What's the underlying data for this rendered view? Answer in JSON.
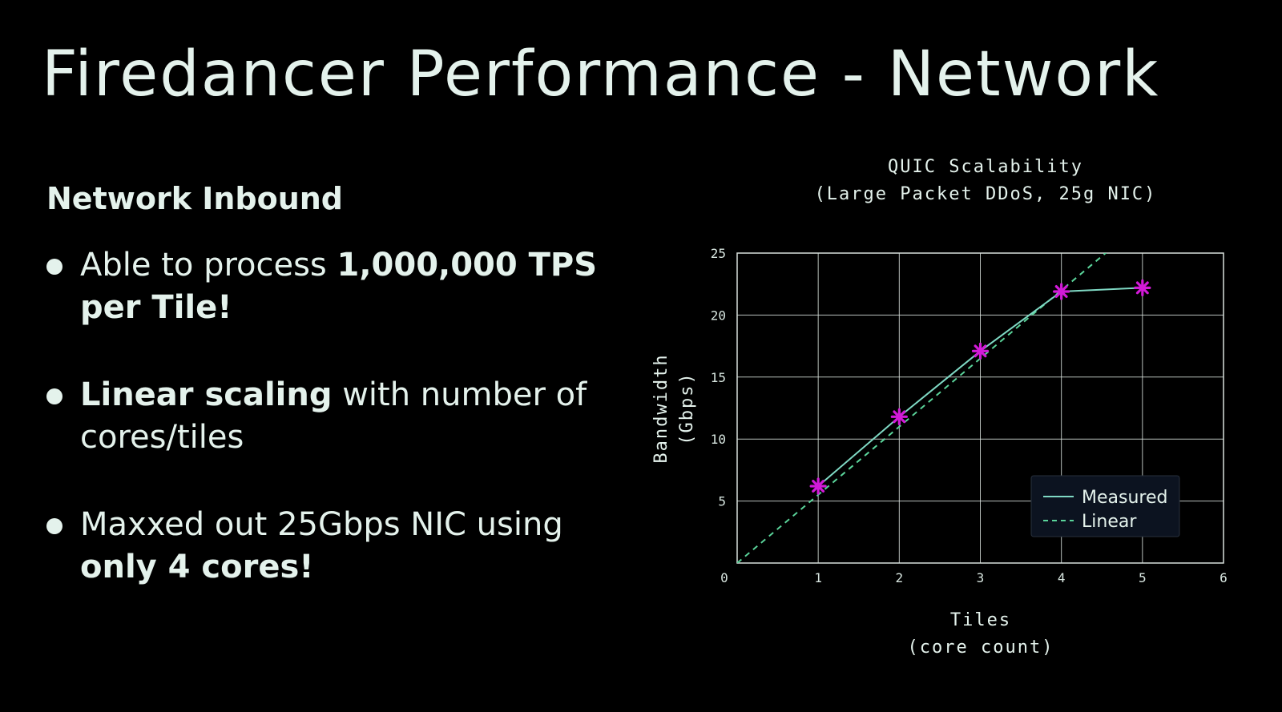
{
  "slide": {
    "title": "Firedancer Performance - Network",
    "section_heading": "Network Inbound",
    "bullets": [
      {
        "parts": [
          {
            "text": "Able to process ",
            "bold": false
          },
          {
            "text": "1,000,000 TPS per Tile!",
            "bold": true
          }
        ]
      },
      {
        "parts": [
          {
            "text": "Linear scaling",
            "bold": true
          },
          {
            "text": " with number of cores/tiles",
            "bold": false
          }
        ]
      },
      {
        "parts": [
          {
            "text": "Maxxed out 25Gbps NIC using ",
            "bold": false
          },
          {
            "text": "only 4 cores!",
            "bold": true
          }
        ]
      }
    ]
  },
  "colors": {
    "background": "#000000",
    "text": "#e4f2ec",
    "grid": "#d8e0dc",
    "measured_line": "#7fd9c4",
    "linear_line": "#5ad49a",
    "marker": "#d21ad8",
    "legend_bg": "#0c1320"
  },
  "chart_data": {
    "type": "line",
    "title": "QUIC Scalability",
    "subtitle": "(Large Packet DDoS, 25g NIC)",
    "xlabel": "Tiles",
    "xlabel_sub": "(core count)",
    "ylabel": "Bandwidth",
    "ylabel_sub": "(Gbps)",
    "xlim": [
      0,
      6
    ],
    "ylim": [
      0,
      25
    ],
    "xticks": [
      0,
      1,
      2,
      3,
      4,
      5,
      6
    ],
    "yticks": [
      5,
      10,
      15,
      20,
      25
    ],
    "grid": true,
    "legend_position": "bottom-right",
    "series": [
      {
        "name": "Measured",
        "style": "solid",
        "marker": "asterisk",
        "x": [
          1,
          2,
          3,
          4,
          5
        ],
        "y": [
          6.2,
          11.8,
          17.1,
          21.9,
          22.2
        ]
      },
      {
        "name": "Linear",
        "style": "dashed",
        "marker": "none",
        "x": [
          0,
          6
        ],
        "y": [
          0,
          33
        ]
      }
    ]
  }
}
